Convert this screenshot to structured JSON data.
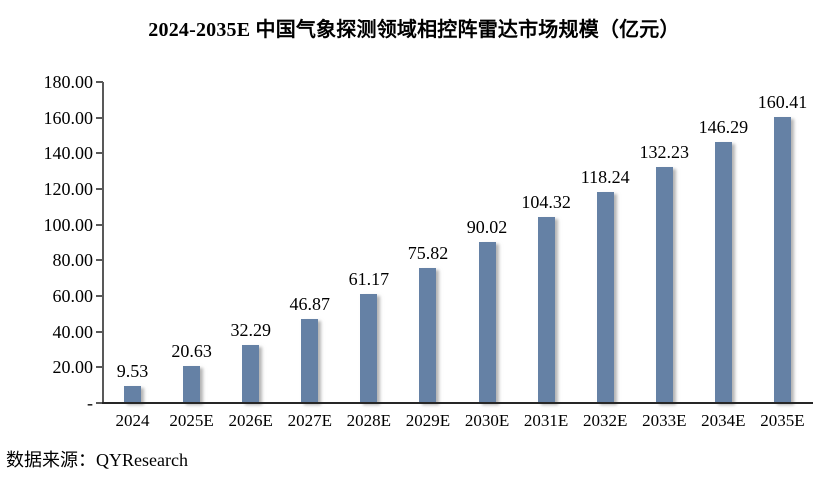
{
  "page": {
    "title": "2024-2035E 中国气象探测领域相控阵雷达市场规模（亿元）",
    "source": "数据来源：QYResearch"
  },
  "chart_data": {
    "type": "bar",
    "title": "2024-2035E 中国气象探测领域相控阵雷达市场规模（亿元）",
    "categories": [
      "2024",
      "2025E",
      "2026E",
      "2027E",
      "2028E",
      "2029E",
      "2030E",
      "2031E",
      "2032E",
      "2033E",
      "2034E",
      "2035E"
    ],
    "values": [
      9.53,
      20.63,
      32.29,
      46.87,
      61.17,
      75.82,
      90.02,
      104.32,
      118.24,
      132.23,
      146.29,
      160.41
    ],
    "value_labels": [
      "9.53",
      "20.63",
      "32.29",
      "46.87",
      "61.17",
      "75.82",
      "90.02",
      "104.32",
      "118.24",
      "132.23",
      "146.29",
      "160.41"
    ],
    "xlabel": "",
    "ylabel": "",
    "ylim": [
      0,
      180
    ],
    "ytick_step": 20,
    "ytick_labels_top_down": [
      "180.00",
      "160.00",
      "140.00",
      "120.00",
      "100.00",
      "80.00",
      "60.00",
      "40.00",
      "20.00",
      "-"
    ],
    "grid": false,
    "legend": false,
    "bar_color": "#6581A5",
    "source": "数据来源：QYResearch"
  }
}
